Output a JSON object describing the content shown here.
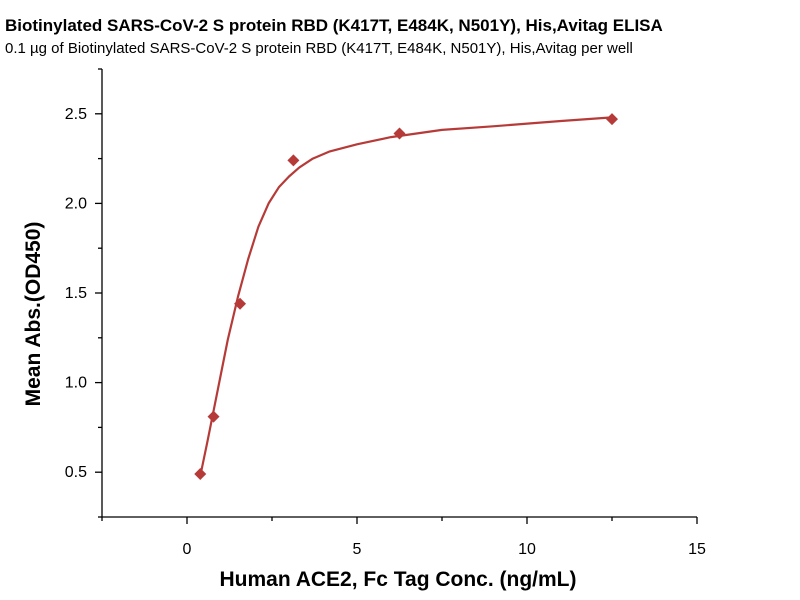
{
  "chart_data": {
    "type": "scatter",
    "title": "Biotinylated SARS-CoV-2 S protein RBD (K417T, E484K, N501Y), His,Avitag ELISA",
    "subtitle": "0.1 µg of Biotinylated SARS-CoV-2 S protein RBD (K417T, E484K, N501Y), His,Avitag per well",
    "xlabel": "Human ACE2, Fc Tag Conc. (ng/mL)",
    "ylabel": "Mean Abs.(OD450)",
    "xlim": [
      -2.5,
      15
    ],
    "ylim": [
      0.25,
      2.75
    ],
    "x_ticks": [
      0,
      5,
      10,
      15
    ],
    "x_tick_labels": [
      "0",
      "5",
      "10",
      "15"
    ],
    "y_ticks": [
      0.5,
      1.0,
      1.5,
      2.0,
      2.5
    ],
    "y_tick_labels": [
      "0.5",
      "1.0",
      "1.5",
      "2.0",
      "2.5"
    ],
    "grid": false,
    "series": [
      {
        "x": [
          0.39,
          0.78,
          1.56,
          3.13,
          6.25,
          12.5
        ],
        "y": [
          0.49,
          0.81,
          1.44,
          2.24,
          2.39,
          2.47
        ],
        "color": "#b63b38",
        "marker": "diamond",
        "fit": "four-parameter logistic",
        "fit_curve": {
          "x": [
            0.39,
            0.6,
            0.8,
            1.0,
            1.2,
            1.5,
            1.8,
            2.1,
            2.4,
            2.7,
            3.0,
            3.3,
            3.7,
            4.2,
            5.0,
            6.0,
            7.5,
            9.0,
            11.0,
            12.5
          ],
          "y": [
            0.48,
            0.67,
            0.86,
            1.05,
            1.24,
            1.48,
            1.69,
            1.87,
            2.0,
            2.09,
            2.15,
            2.2,
            2.25,
            2.29,
            2.33,
            2.37,
            2.41,
            2.43,
            2.46,
            2.48
          ]
        }
      }
    ]
  }
}
